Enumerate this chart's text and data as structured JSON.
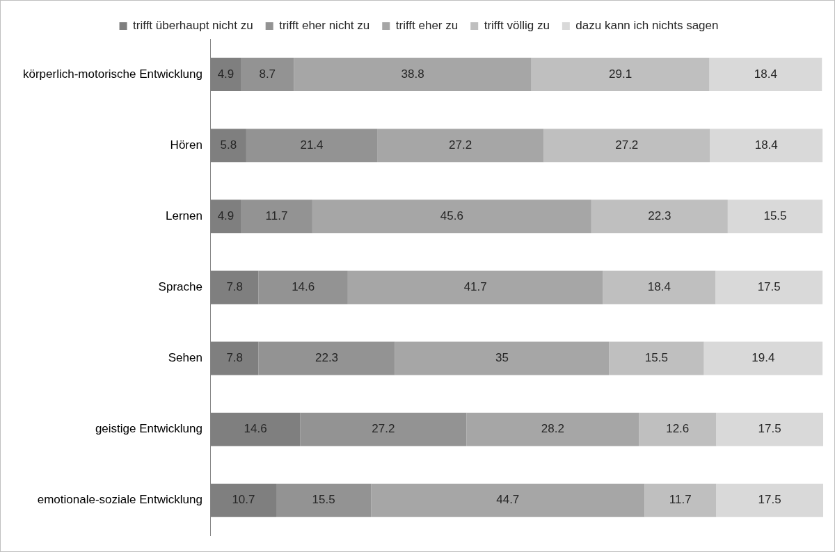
{
  "chart_data": {
    "type": "bar",
    "orientation": "horizontal",
    "stacked": true,
    "data_labels": true,
    "legend": "top",
    "grid": false,
    "categories": [
      "körperlich-motorische Entwicklung",
      "Hören",
      "Lernen",
      "Sprache",
      "Sehen",
      "geistige Entwicklung",
      "emotionale-soziale Entwicklung"
    ],
    "series": [
      {
        "name": "trifft überhaupt nicht zu",
        "color": "#7f7f7f",
        "values": [
          4.9,
          5.8,
          4.9,
          7.8,
          7.8,
          14.6,
          10.7
        ]
      },
      {
        "name": "trifft eher nicht zu",
        "color": "#939393",
        "values": [
          8.7,
          21.4,
          11.7,
          14.6,
          22.3,
          27.2,
          15.5
        ]
      },
      {
        "name": "trifft eher zu",
        "color": "#a6a6a6",
        "values": [
          38.8,
          27.2,
          45.6,
          41.7,
          35,
          28.2,
          44.7
        ]
      },
      {
        "name": "trifft völlig zu",
        "color": "#bfbfbf",
        "values": [
          29.1,
          27.2,
          22.3,
          18.4,
          15.5,
          12.6,
          11.7
        ]
      },
      {
        "name": "dazu kann ich nichts sagen",
        "color": "#d9d9d9",
        "values": [
          18.4,
          18.4,
          15.5,
          17.5,
          19.4,
          17.5,
          17.5
        ]
      }
    ]
  }
}
